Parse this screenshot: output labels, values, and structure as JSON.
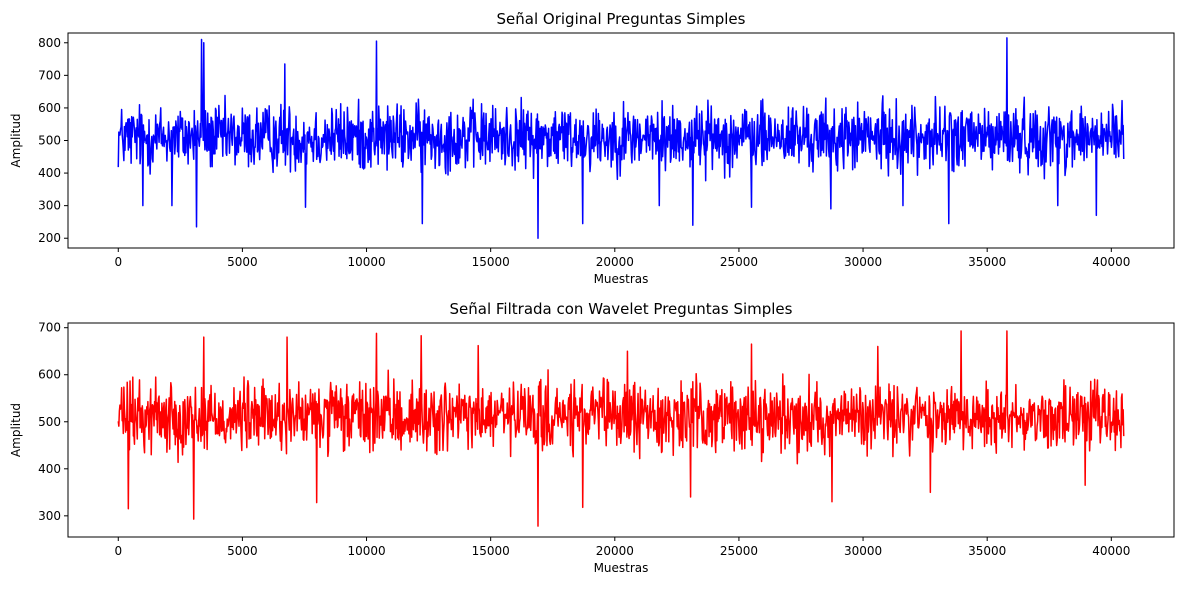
{
  "chart_data": [
    {
      "type": "line",
      "title": "Señal Original Preguntas Simples",
      "xlabel": "Muestras",
      "ylabel": "Amplitud",
      "xlim": [
        -2025,
        42525
      ],
      "ylim": [
        170,
        830
      ],
      "xticks": [
        0,
        5000,
        10000,
        15000,
        20000,
        25000,
        30000,
        35000,
        40000
      ],
      "yticks": [
        200,
        300,
        400,
        500,
        600,
        700,
        800
      ],
      "grid": false,
      "series": [
        {
          "color": "#0000ff",
          "n": 40500,
          "center": 510,
          "typical_low": 390,
          "typical_high": 650,
          "min": 200,
          "max": 815,
          "spikes": [
            [
              3150,
              235
            ],
            [
              3350,
              810
            ],
            [
              3450,
              800
            ],
            [
              10400,
              805
            ],
            [
              16900,
              200
            ],
            [
              23150,
              240
            ],
            [
              35800,
              815
            ],
            [
              33450,
              245
            ],
            [
              12250,
              245
            ],
            [
              7550,
              295
            ],
            [
              28700,
              290
            ],
            [
              39400,
              270
            ],
            [
              1000,
              300
            ],
            [
              2150,
              300
            ],
            [
              18700,
              245
            ],
            [
              21800,
              300
            ],
            [
              25500,
              295
            ],
            [
              31600,
              300
            ],
            [
              37850,
              300
            ],
            [
              6700,
              735
            ]
          ]
        }
      ]
    },
    {
      "type": "line",
      "title": "Señal Filtrada con Wavelet Preguntas Simples",
      "xlabel": "Muestras",
      "ylabel": "Amplitud",
      "xlim": [
        -2025,
        42525
      ],
      "ylim": [
        255,
        710
      ],
      "xticks": [
        0,
        5000,
        10000,
        15000,
        20000,
        25000,
        30000,
        35000,
        40000
      ],
      "yticks": [
        300,
        400,
        500,
        600,
        700
      ],
      "grid": false,
      "series": [
        {
          "color": "#ff0000",
          "n": 40500,
          "center": 510,
          "typical_low": 420,
          "typical_high": 610,
          "min": 278,
          "max": 693,
          "spikes": [
            [
              3050,
              293
            ],
            [
              16900,
              278
            ],
            [
              3450,
              680
            ],
            [
              10400,
              688
            ],
            [
              12200,
              683
            ],
            [
              33950,
              693
            ],
            [
              35800,
              693
            ],
            [
              400,
              315
            ],
            [
              8000,
              328
            ],
            [
              28750,
              330
            ],
            [
              18700,
              318
            ],
            [
              23050,
              340
            ],
            [
              32700,
              350
            ],
            [
              38950,
              365
            ],
            [
              6800,
              680
            ],
            [
              14500,
              662
            ],
            [
              20500,
              650
            ],
            [
              25500,
              665
            ],
            [
              30600,
              660
            ],
            [
              1500,
              595
            ]
          ]
        }
      ]
    }
  ]
}
